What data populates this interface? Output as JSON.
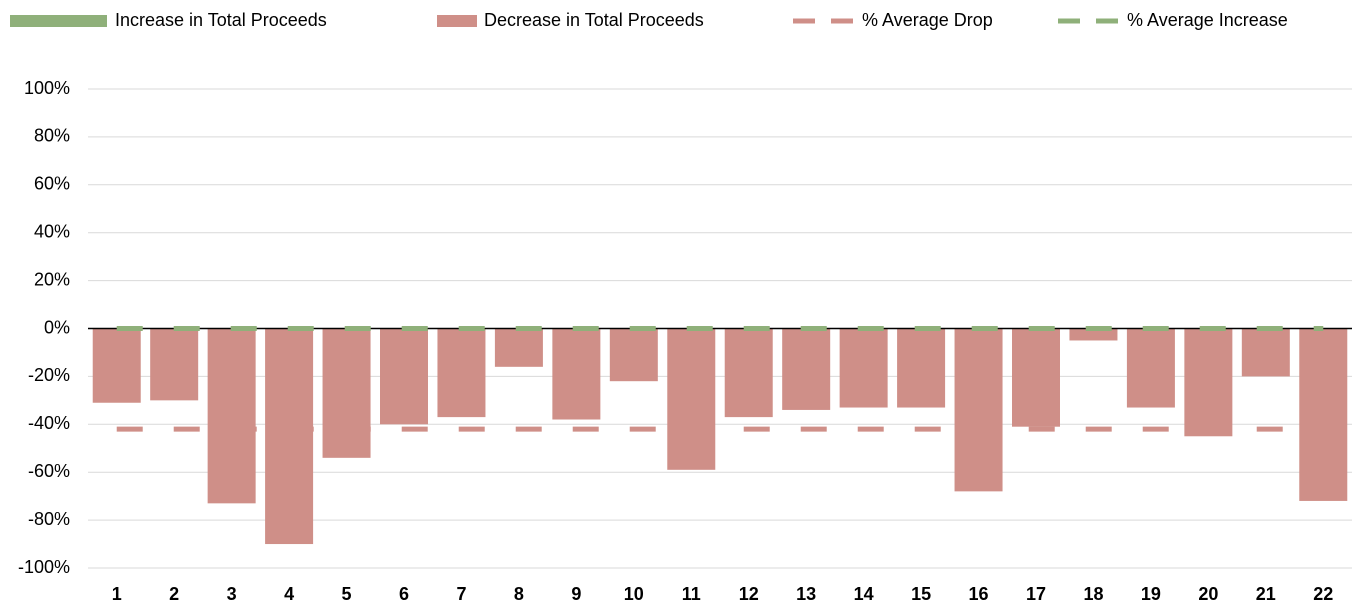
{
  "chart_data": {
    "type": "bar",
    "categories": [
      "1",
      "2",
      "3",
      "4",
      "5",
      "6",
      "7",
      "8",
      "9",
      "10",
      "11",
      "12",
      "13",
      "14",
      "15",
      "16",
      "17",
      "18",
      "19",
      "20",
      "21",
      "22"
    ],
    "series": [
      {
        "name": "Increase in Total Proceeds",
        "type": "bar",
        "color": "#8fb07a",
        "values": [
          0,
          0,
          0,
          0,
          0,
          0,
          0,
          0,
          0,
          0,
          0,
          0,
          0,
          0,
          0,
          0,
          0,
          0,
          0,
          0,
          0,
          0
        ]
      },
      {
        "name": "Decrease in Total Proceeds",
        "type": "bar",
        "color": "#cf8f88",
        "values": [
          -31,
          -30,
          -73,
          -90,
          -54,
          -40,
          -37,
          -16,
          -38,
          -22,
          -59,
          -37,
          -34,
          -33,
          -33,
          -68,
          -41,
          -5,
          -33,
          -45,
          -20,
          -72
        ]
      },
      {
        "name": "% Average Drop",
        "type": "line",
        "dashed": true,
        "color": "#cf8f88",
        "values": [
          -42,
          -42,
          -42,
          -42,
          -42,
          -42,
          -42,
          -42,
          -42,
          -42,
          -42,
          -42,
          -42,
          -42,
          -42,
          -42,
          -42,
          -42,
          -42,
          -42,
          -42,
          -42
        ]
      },
      {
        "name": "% Average Increase",
        "type": "line",
        "dashed": true,
        "color": "#8fb07a",
        "values": [
          0,
          0,
          0,
          0,
          0,
          0,
          0,
          0,
          0,
          0,
          0,
          0,
          0,
          0,
          0,
          0,
          0,
          0,
          0,
          0,
          0,
          0
        ]
      }
    ],
    "ylim": [
      -100,
      100
    ],
    "yticks": [
      {
        "value": -100,
        "label": "-100%"
      },
      {
        "value": -80,
        "label": "-80%"
      },
      {
        "value": -60,
        "label": "-60%"
      },
      {
        "value": -40,
        "label": "-40%"
      },
      {
        "value": -20,
        "label": "-20%"
      },
      {
        "value": 0,
        "label": "0%"
      },
      {
        "value": 20,
        "label": "20%"
      },
      {
        "value": 40,
        "label": "40%"
      },
      {
        "value": 60,
        "label": "60%"
      },
      {
        "value": 80,
        "label": "80%"
      },
      {
        "value": 100,
        "label": "100%"
      }
    ],
    "grid": true,
    "legend": "top"
  }
}
